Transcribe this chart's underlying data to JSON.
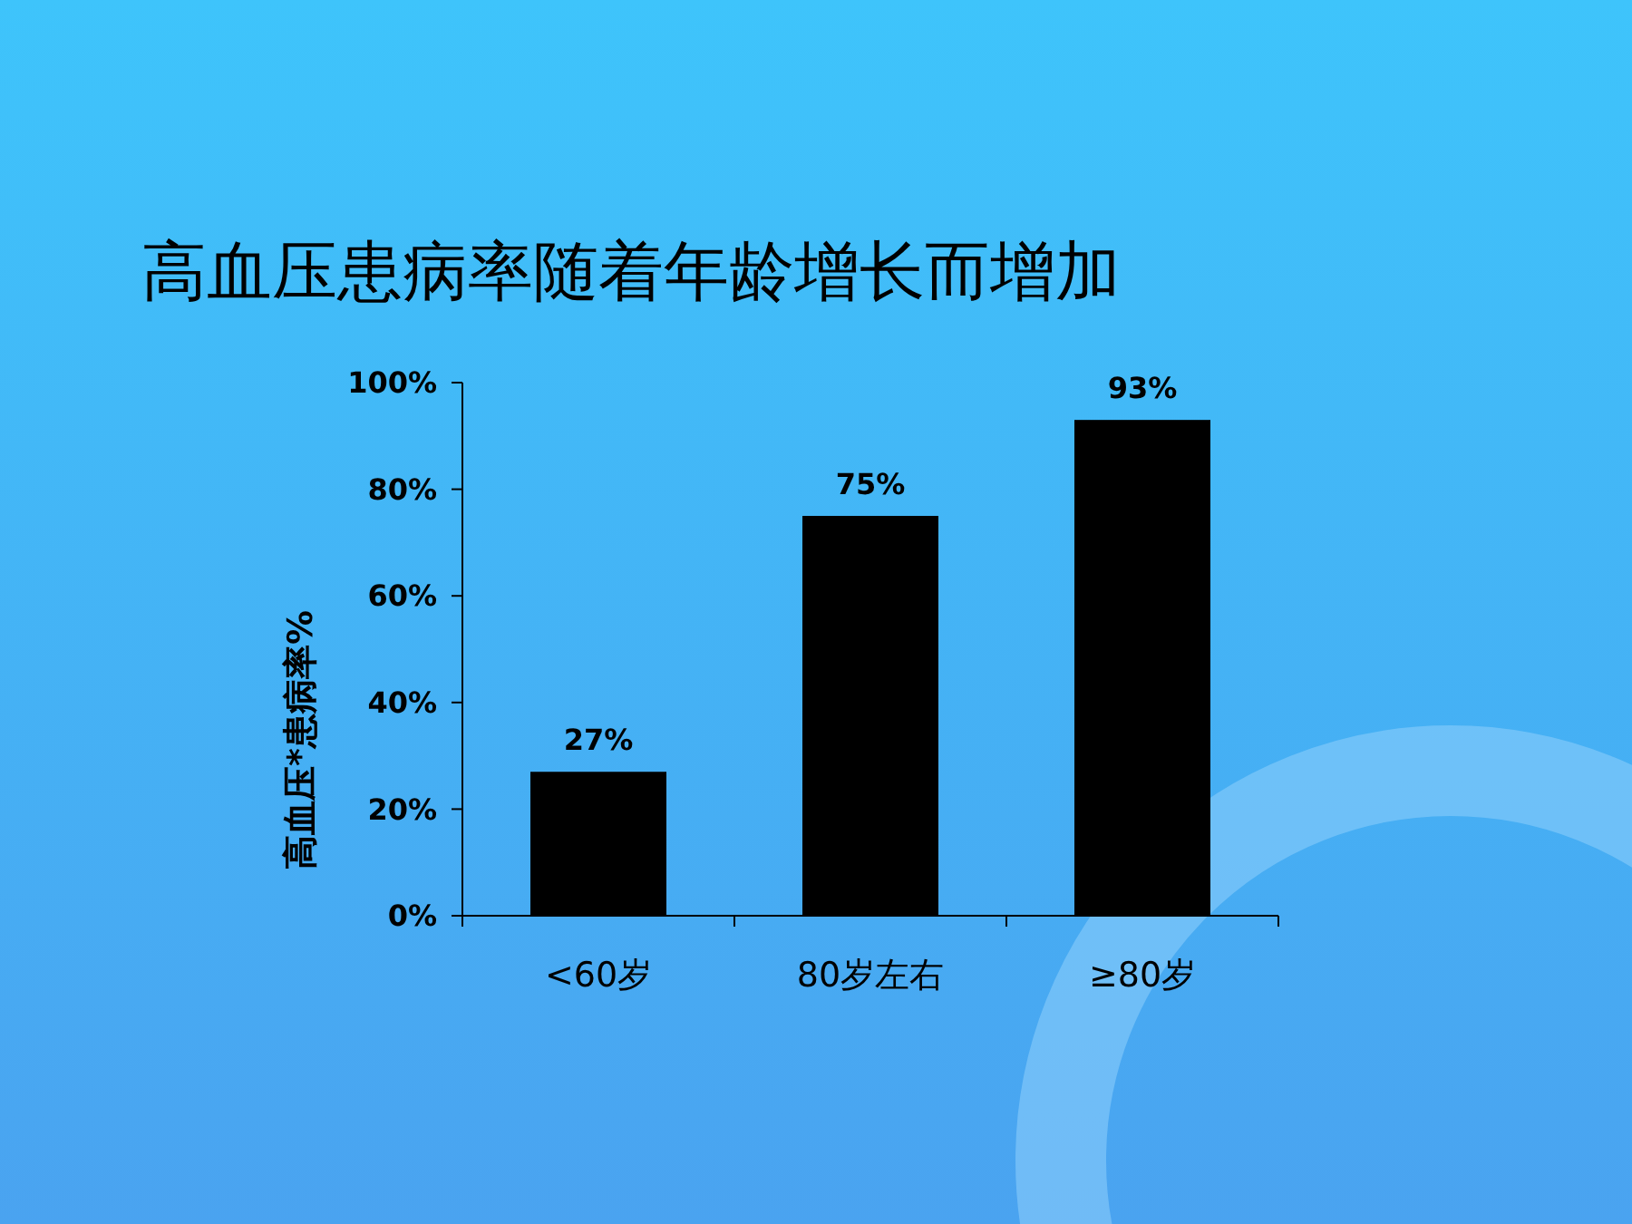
{
  "chart_data": {
    "type": "bar",
    "title": "高血压患病率随着年龄增长而增加",
    "ylabel": "高血压*患病率%",
    "categories": [
      "<60岁",
      "80岁左右",
      "≥80岁"
    ],
    "values": [
      27,
      75,
      93
    ],
    "color": "#000000",
    "value_labels": [
      "27%",
      "75%",
      "93%"
    ],
    "ylim": [
      0,
      100
    ],
    "yticks": [
      {
        "value": 0,
        "label": "0%"
      },
      {
        "value": 20,
        "label": "20%"
      },
      {
        "value": 40,
        "label": "40%"
      },
      {
        "value": 60,
        "label": "60%"
      },
      {
        "value": 80,
        "label": "80%"
      },
      {
        "value": 100,
        "label": "100%"
      }
    ],
    "grid": false
  }
}
